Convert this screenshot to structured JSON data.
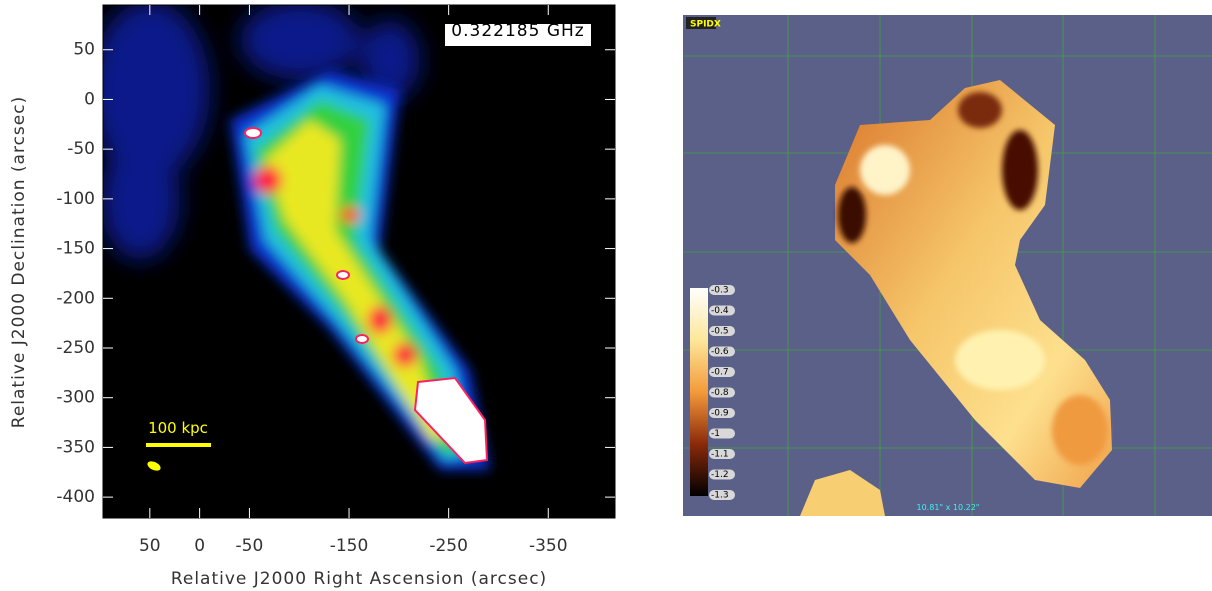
{
  "left_panel": {
    "frequency_label": "0.322185 GHz",
    "scale_bar_label": "100 kpc",
    "x_axis": {
      "title": "Relative J2000 Right Ascension (arcsec)",
      "lim": [
        97,
        -417
      ],
      "ticks": [
        50,
        0,
        -50,
        -150,
        -250,
        -350
      ]
    },
    "y_axis": {
      "title": "Relative J2000 Declination (arcsec)",
      "lim": [
        95,
        -421
      ],
      "ticks": [
        50,
        0,
        -50,
        -100,
        -150,
        -200,
        -250,
        -300,
        -350,
        -400
      ]
    }
  },
  "right_panel": {
    "map_label": "SPIDX",
    "beam_label": "10.81\" x 10.22\"",
    "colorbar": {
      "lim": [
        -0.3,
        -1.3
      ],
      "ticks": [
        -0.3,
        -0.4,
        -0.5,
        -0.6,
        -0.7,
        -0.8,
        -0.9,
        -1,
        -1.1,
        -1.2,
        -1.3
      ]
    }
  }
}
